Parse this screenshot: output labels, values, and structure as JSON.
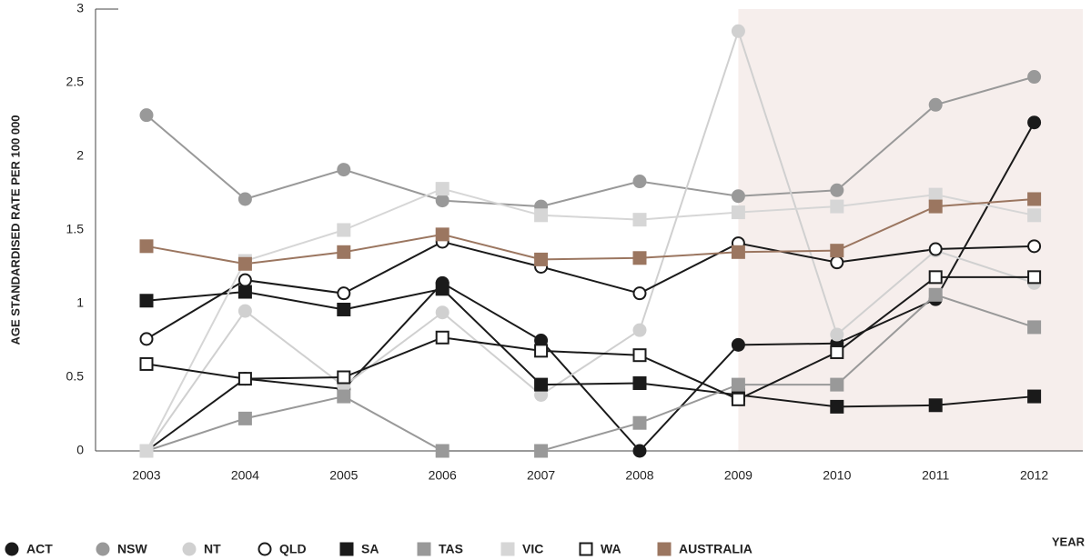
{
  "chart_data": {
    "type": "line",
    "y_label": "AGE STANDARDISED RATE PER 100 000",
    "x_label": "YEAR",
    "categories": [
      "2003",
      "2004",
      "2005",
      "2006",
      "2007",
      "2008",
      "2009",
      "2010",
      "2011",
      "2012"
    ],
    "highlight_from": "2009",
    "ylim": [
      0,
      3
    ],
    "yticks": [
      0,
      0.5,
      1,
      1.5,
      2,
      2.5,
      3
    ],
    "series": [
      {
        "name": "ACT",
        "color": "#1a1a1a",
        "marker": "circle",
        "filled": true,
        "values": [
          0,
          0.49,
          0.42,
          1.14,
          0.75,
          0,
          0.72,
          0.73,
          1.03,
          2.23
        ]
      },
      {
        "name": "NSW",
        "color": "#999999",
        "marker": "circle",
        "filled": true,
        "values": [
          2.28,
          1.71,
          1.91,
          1.7,
          1.66,
          1.83,
          1.73,
          1.77,
          2.35,
          2.54
        ]
      },
      {
        "name": "NT",
        "color": "#d0d0d0",
        "marker": "circle",
        "filled": true,
        "values": [
          0,
          0.95,
          0.44,
          0.94,
          0.38,
          0.82,
          2.85,
          0.79,
          1.36,
          1.14
        ]
      },
      {
        "name": "QLD",
        "color": "#1a1a1a",
        "marker": "circle",
        "filled": false,
        "values": [
          0.76,
          1.16,
          1.07,
          1.42,
          1.25,
          1.07,
          1.41,
          1.28,
          1.37,
          1.39
        ]
      },
      {
        "name": "SA",
        "color": "#1a1a1a",
        "marker": "square",
        "filled": true,
        "values": [
          1.02,
          1.08,
          0.96,
          1.1,
          0.45,
          0.46,
          0.38,
          0.3,
          0.31,
          0.37
        ]
      },
      {
        "name": "TAS",
        "color": "#999999",
        "marker": "square",
        "filled": true,
        "values": [
          0,
          0.22,
          0.37,
          0,
          0,
          0.19,
          0.45,
          0.45,
          1.06,
          0.84
        ]
      },
      {
        "name": "VIC",
        "color": "#d6d6d6",
        "marker": "square",
        "filled": true,
        "values": [
          0,
          1.29,
          1.5,
          1.78,
          1.6,
          1.57,
          1.62,
          1.66,
          1.74,
          1.6
        ]
      },
      {
        "name": "WA",
        "color": "#1a1a1a",
        "marker": "square",
        "filled": false,
        "values": [
          0.59,
          0.49,
          0.5,
          0.77,
          0.68,
          0.65,
          0.35,
          0.67,
          1.18,
          1.18
        ]
      },
      {
        "name": "AUSTRALIA",
        "color": "#9b7660",
        "marker": "square",
        "filled": true,
        "values": [
          1.39,
          1.27,
          1.35,
          1.47,
          1.3,
          1.31,
          1.35,
          1.36,
          1.66,
          1.71
        ]
      }
    ]
  }
}
